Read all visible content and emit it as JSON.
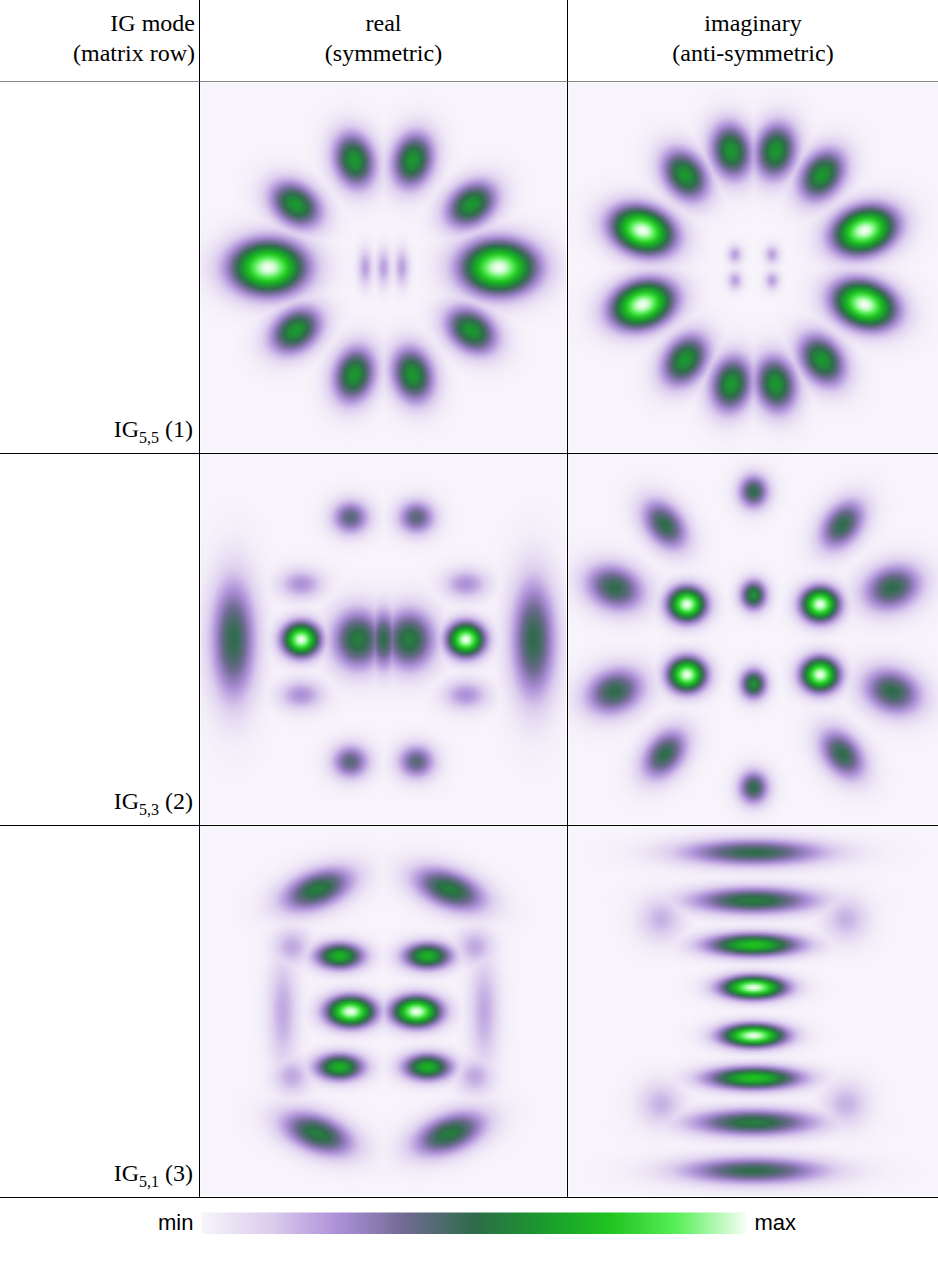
{
  "chart_data": {
    "type": "heatmap_grid",
    "column_heads": [
      [
        "IG mode",
        "(matrix row)"
      ],
      [
        "real",
        "(symmetric)"
      ],
      [
        "imaginary",
        "(anti-symmetric)"
      ]
    ],
    "xlim": [
      -1,
      1
    ],
    "ylim": [
      -1,
      1
    ],
    "tick_labels": false,
    "colorbar": {
      "range": [
        0,
        1
      ],
      "min_label": "min",
      "max_label": "max",
      "colors": [
        "#f7f4fb",
        "#dccdee",
        "#ad90d8",
        "#6f6a92",
        "#2f6b4b",
        "#1a9a2e",
        "#1fc41f",
        "#5af05a",
        "#f4fff4"
      ]
    },
    "rows": [
      {
        "mode": "IG",
        "indices": "5,5",
        "matrix_row": "(1)",
        "real": [
          {
            "x": -0.63,
            "y": 0,
            "rx": 0.2,
            "ry": 0.14,
            "angle": 0,
            "peak": 1
          },
          {
            "x": 0.63,
            "y": 0,
            "rx": 0.2,
            "ry": 0.14,
            "angle": 0,
            "peak": 1
          },
          {
            "x": -0.48,
            "y": 0.34,
            "rx": 0.15,
            "ry": 0.11,
            "angle": 145,
            "peak": 0.62
          },
          {
            "x": 0.48,
            "y": 0.34,
            "rx": 0.15,
            "ry": 0.11,
            "angle": 35,
            "peak": 0.62
          },
          {
            "x": -0.16,
            "y": 0.58,
            "rx": 0.15,
            "ry": 0.11,
            "angle": 105,
            "peak": 0.62
          },
          {
            "x": 0.16,
            "y": 0.58,
            "rx": 0.15,
            "ry": 0.11,
            "angle": 75,
            "peak": 0.62
          },
          {
            "x": -0.48,
            "y": -0.34,
            "rx": 0.15,
            "ry": 0.11,
            "angle": 215,
            "peak": 0.62
          },
          {
            "x": 0.48,
            "y": -0.34,
            "rx": 0.15,
            "ry": 0.11,
            "angle": -35,
            "peak": 0.62
          },
          {
            "x": -0.16,
            "y": -0.58,
            "rx": 0.15,
            "ry": 0.11,
            "angle": 255,
            "peak": 0.62
          },
          {
            "x": 0.16,
            "y": -0.58,
            "rx": 0.15,
            "ry": 0.11,
            "angle": -75,
            "peak": 0.62
          },
          {
            "x": -0.1,
            "y": 0,
            "rx": 0.04,
            "ry": 0.1,
            "angle": 0,
            "peak": 0.22
          },
          {
            "x": 0,
            "y": 0,
            "rx": 0.04,
            "ry": 0.1,
            "angle": 0,
            "peak": 0.22
          },
          {
            "x": 0.1,
            "y": 0,
            "rx": 0.04,
            "ry": 0.1,
            "angle": 0,
            "peak": 0.22
          }
        ],
        "imaginary": [
          {
            "x": -0.6,
            "y": 0.2,
            "rx": 0.17,
            "ry": 0.12,
            "angle": 162,
            "peak": 1
          },
          {
            "x": 0.6,
            "y": 0.2,
            "rx": 0.17,
            "ry": 0.12,
            "angle": 18,
            "peak": 1
          },
          {
            "x": -0.6,
            "y": -0.2,
            "rx": 0.17,
            "ry": 0.12,
            "angle": 198,
            "peak": 1
          },
          {
            "x": 0.6,
            "y": -0.2,
            "rx": 0.17,
            "ry": 0.12,
            "angle": -18,
            "peak": 1
          },
          {
            "x": -0.37,
            "y": 0.5,
            "rx": 0.15,
            "ry": 0.11,
            "angle": 126,
            "peak": 0.62
          },
          {
            "x": 0.37,
            "y": 0.5,
            "rx": 0.15,
            "ry": 0.11,
            "angle": 54,
            "peak": 0.62
          },
          {
            "x": -0.12,
            "y": 0.63,
            "rx": 0.15,
            "ry": 0.11,
            "angle": 101,
            "peak": 0.62
          },
          {
            "x": 0.12,
            "y": 0.63,
            "rx": 0.15,
            "ry": 0.11,
            "angle": 79,
            "peak": 0.62
          },
          {
            "x": -0.37,
            "y": -0.5,
            "rx": 0.15,
            "ry": 0.11,
            "angle": 234,
            "peak": 0.62
          },
          {
            "x": 0.37,
            "y": -0.5,
            "rx": 0.15,
            "ry": 0.11,
            "angle": -54,
            "peak": 0.62
          },
          {
            "x": -0.12,
            "y": -0.63,
            "rx": 0.15,
            "ry": 0.11,
            "angle": 259,
            "peak": 0.62
          },
          {
            "x": 0.12,
            "y": -0.63,
            "rx": 0.15,
            "ry": 0.11,
            "angle": -79,
            "peak": 0.62
          },
          {
            "x": -0.1,
            "y": 0.07,
            "rx": 0.04,
            "ry": 0.05,
            "angle": 0,
            "peak": 0.22
          },
          {
            "x": 0.1,
            "y": 0.07,
            "rx": 0.04,
            "ry": 0.05,
            "angle": 0,
            "peak": 0.22
          },
          {
            "x": -0.1,
            "y": -0.07,
            "rx": 0.04,
            "ry": 0.05,
            "angle": 0,
            "peak": 0.22
          },
          {
            "x": 0.1,
            "y": -0.07,
            "rx": 0.04,
            "ry": 0.05,
            "angle": 0,
            "peak": 0.22
          }
        ]
      },
      {
        "mode": "IG",
        "indices": "5,3",
        "matrix_row": "(2)",
        "real": [
          {
            "x": -0.45,
            "y": 0,
            "rx": 0.1,
            "ry": 0.09,
            "angle": 0,
            "peak": 1
          },
          {
            "x": 0.45,
            "y": 0,
            "rx": 0.1,
            "ry": 0.09,
            "angle": 0,
            "peak": 1
          },
          {
            "x": -0.14,
            "y": 0,
            "rx": 0.14,
            "ry": 0.16,
            "angle": 0,
            "peak": 0.55
          },
          {
            "x": 0.14,
            "y": 0,
            "rx": 0.14,
            "ry": 0.16,
            "angle": 0,
            "peak": 0.55
          },
          {
            "x": 0,
            "y": 0,
            "rx": 0.08,
            "ry": 0.16,
            "angle": 0,
            "peak": 0.5
          },
          {
            "x": -0.82,
            "y": 0,
            "rx": 0.12,
            "ry": 0.32,
            "angle": 0,
            "peak": 0.5
          },
          {
            "x": 0.82,
            "y": 0,
            "rx": 0.12,
            "ry": 0.32,
            "angle": 0,
            "peak": 0.5
          },
          {
            "x": -0.18,
            "y": 0.66,
            "rx": 0.1,
            "ry": 0.09,
            "angle": 0,
            "peak": 0.42
          },
          {
            "x": 0.18,
            "y": 0.66,
            "rx": 0.1,
            "ry": 0.09,
            "angle": 0,
            "peak": 0.42
          },
          {
            "x": -0.18,
            "y": -0.66,
            "rx": 0.1,
            "ry": 0.09,
            "angle": 0,
            "peak": 0.42
          },
          {
            "x": 0.18,
            "y": -0.66,
            "rx": 0.1,
            "ry": 0.09,
            "angle": 0,
            "peak": 0.42
          },
          {
            "x": -0.45,
            "y": 0.3,
            "rx": 0.12,
            "ry": 0.08,
            "angle": 0,
            "peak": 0.25
          },
          {
            "x": 0.45,
            "y": 0.3,
            "rx": 0.12,
            "ry": 0.08,
            "angle": 0,
            "peak": 0.25
          },
          {
            "x": -0.45,
            "y": -0.3,
            "rx": 0.12,
            "ry": 0.08,
            "angle": 0,
            "peak": 0.25
          },
          {
            "x": 0.45,
            "y": -0.3,
            "rx": 0.12,
            "ry": 0.08,
            "angle": 0,
            "peak": 0.25
          }
        ],
        "imaginary": [
          {
            "x": -0.36,
            "y": 0.19,
            "rx": 0.1,
            "ry": 0.09,
            "angle": 0,
            "peak": 1
          },
          {
            "x": 0.36,
            "y": 0.19,
            "rx": 0.1,
            "ry": 0.09,
            "angle": 0,
            "peak": 1
          },
          {
            "x": -0.36,
            "y": -0.19,
            "rx": 0.1,
            "ry": 0.09,
            "angle": 0,
            "peak": 1
          },
          {
            "x": 0.36,
            "y": -0.19,
            "rx": 0.1,
            "ry": 0.09,
            "angle": 0,
            "peak": 1
          },
          {
            "x": 0,
            "y": 0.24,
            "rx": 0.07,
            "ry": 0.08,
            "angle": 0,
            "peak": 0.6
          },
          {
            "x": 0,
            "y": -0.24,
            "rx": 0.07,
            "ry": 0.08,
            "angle": 0,
            "peak": 0.6
          },
          {
            "x": 0,
            "y": 0.8,
            "rx": 0.08,
            "ry": 0.09,
            "angle": 0,
            "peak": 0.5
          },
          {
            "x": 0,
            "y": -0.8,
            "rx": 0.08,
            "ry": 0.09,
            "angle": 0,
            "peak": 0.5
          },
          {
            "x": -0.48,
            "y": 0.62,
            "rx": 0.15,
            "ry": 0.1,
            "angle": 128,
            "peak": 0.5
          },
          {
            "x": 0.48,
            "y": 0.62,
            "rx": 0.15,
            "ry": 0.1,
            "angle": 52,
            "peak": 0.5
          },
          {
            "x": -0.48,
            "y": -0.62,
            "rx": 0.15,
            "ry": 0.1,
            "angle": 232,
            "peak": 0.5
          },
          {
            "x": 0.48,
            "y": -0.62,
            "rx": 0.15,
            "ry": 0.1,
            "angle": -52,
            "peak": 0.5
          },
          {
            "x": -0.75,
            "y": 0.28,
            "rx": 0.16,
            "ry": 0.12,
            "angle": 160,
            "peak": 0.5
          },
          {
            "x": 0.75,
            "y": 0.28,
            "rx": 0.16,
            "ry": 0.12,
            "angle": 20,
            "peak": 0.5
          },
          {
            "x": -0.75,
            "y": -0.28,
            "rx": 0.16,
            "ry": 0.12,
            "angle": 200,
            "peak": 0.5
          },
          {
            "x": 0.75,
            "y": -0.28,
            "rx": 0.16,
            "ry": 0.12,
            "angle": -20,
            "peak": 0.5
          }
        ]
      },
      {
        "mode": "IG",
        "indices": "5,1",
        "matrix_row": "(3)",
        "real": [
          {
            "x": -0.18,
            "y": 0,
            "rx": 0.13,
            "ry": 0.08,
            "angle": 0,
            "peak": 1
          },
          {
            "x": 0.18,
            "y": 0,
            "rx": 0.13,
            "ry": 0.08,
            "angle": 0,
            "peak": 1
          },
          {
            "x": -0.24,
            "y": 0.3,
            "rx": 0.13,
            "ry": 0.07,
            "angle": 0,
            "peak": 0.7
          },
          {
            "x": 0.24,
            "y": 0.3,
            "rx": 0.13,
            "ry": 0.07,
            "angle": 0,
            "peak": 0.7
          },
          {
            "x": -0.24,
            "y": -0.3,
            "rx": 0.13,
            "ry": 0.07,
            "angle": 0,
            "peak": 0.7
          },
          {
            "x": 0.24,
            "y": -0.3,
            "rx": 0.13,
            "ry": 0.07,
            "angle": 0,
            "peak": 0.7
          },
          {
            "x": -0.36,
            "y": 0.66,
            "rx": 0.2,
            "ry": 0.1,
            "angle": 20,
            "peak": 0.55
          },
          {
            "x": 0.36,
            "y": 0.66,
            "rx": 0.2,
            "ry": 0.1,
            "angle": -20,
            "peak": 0.55
          },
          {
            "x": -0.36,
            "y": -0.66,
            "rx": 0.2,
            "ry": 0.1,
            "angle": -20,
            "peak": 0.55
          },
          {
            "x": 0.36,
            "y": -0.66,
            "rx": 0.2,
            "ry": 0.1,
            "angle": 20,
            "peak": 0.55
          },
          {
            "x": -0.55,
            "y": 0,
            "rx": 0.08,
            "ry": 0.3,
            "angle": 0,
            "peak": 0.2
          },
          {
            "x": 0.55,
            "y": 0,
            "rx": 0.08,
            "ry": 0.3,
            "angle": 0,
            "peak": 0.2
          },
          {
            "x": -0.5,
            "y": 0.35,
            "rx": 0.1,
            "ry": 0.1,
            "angle": 0,
            "peak": 0.2
          },
          {
            "x": 0.5,
            "y": 0.35,
            "rx": 0.1,
            "ry": 0.1,
            "angle": 0,
            "peak": 0.2
          },
          {
            "x": -0.5,
            "y": -0.35,
            "rx": 0.1,
            "ry": 0.1,
            "angle": 0,
            "peak": 0.2
          },
          {
            "x": 0.5,
            "y": -0.35,
            "rx": 0.1,
            "ry": 0.1,
            "angle": 0,
            "peak": 0.2
          }
        ],
        "imaginary": [
          {
            "x": 0,
            "y": 0.13,
            "rx": 0.17,
            "ry": 0.06,
            "angle": 0,
            "peak": 1
          },
          {
            "x": 0,
            "y": -0.13,
            "rx": 0.17,
            "ry": 0.06,
            "angle": 0,
            "peak": 1
          },
          {
            "x": 0,
            "y": 0.36,
            "rx": 0.25,
            "ry": 0.06,
            "angle": 0,
            "peak": 0.75
          },
          {
            "x": 0,
            "y": -0.36,
            "rx": 0.25,
            "ry": 0.06,
            "angle": 0,
            "peak": 0.75
          },
          {
            "x": 0,
            "y": 0.6,
            "rx": 0.33,
            "ry": 0.07,
            "angle": 0,
            "peak": 0.55
          },
          {
            "x": 0,
            "y": -0.6,
            "rx": 0.33,
            "ry": 0.07,
            "angle": 0,
            "peak": 0.55
          },
          {
            "x": 0,
            "y": 0.86,
            "rx": 0.38,
            "ry": 0.07,
            "angle": 0,
            "peak": 0.5
          },
          {
            "x": 0,
            "y": -0.86,
            "rx": 0.38,
            "ry": 0.07,
            "angle": 0,
            "peak": 0.5
          },
          {
            "x": -0.5,
            "y": 0.5,
            "rx": 0.12,
            "ry": 0.12,
            "angle": 0,
            "peak": 0.18
          },
          {
            "x": 0.5,
            "y": 0.5,
            "rx": 0.12,
            "ry": 0.12,
            "angle": 0,
            "peak": 0.18
          },
          {
            "x": -0.5,
            "y": -0.5,
            "rx": 0.12,
            "ry": 0.12,
            "angle": 0,
            "peak": 0.18
          },
          {
            "x": 0.5,
            "y": -0.5,
            "rx": 0.12,
            "ry": 0.12,
            "angle": 0,
            "peak": 0.18
          }
        ]
      }
    ]
  }
}
